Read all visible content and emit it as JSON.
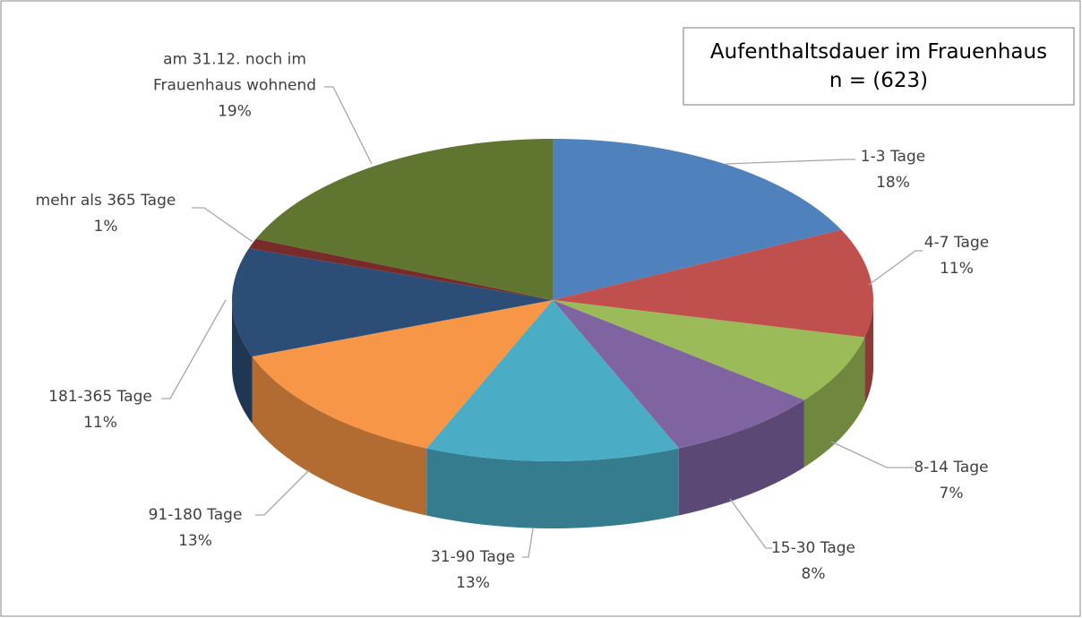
{
  "chart_data": {
    "type": "pie",
    "title": "Aufenthaltsdauer im Frauenhaus",
    "subtitle": "n = (623)",
    "categories": [
      "1-3 Tage",
      "4-7 Tage",
      "8-14 Tage",
      "15-30 Tage",
      "31-90 Tage",
      "91-180 Tage",
      "181-365 Tage",
      "mehr als 365 Tage",
      "am 31.12. noch im Frauenhaus wohnend"
    ],
    "values": [
      18,
      11,
      7,
      8,
      13,
      13,
      11,
      1,
      19
    ],
    "value_labels": [
      "18%",
      "11%",
      "7%",
      "8%",
      "13%",
      "13%",
      "11%",
      "1%",
      "19%"
    ],
    "colors": [
      "#4f81bd",
      "#c0504d",
      "#9bbb59",
      "#8064a2",
      "#4bacc6",
      "#f79646",
      "#2c4d75",
      "#772c2a",
      "#5f7530"
    ]
  }
}
